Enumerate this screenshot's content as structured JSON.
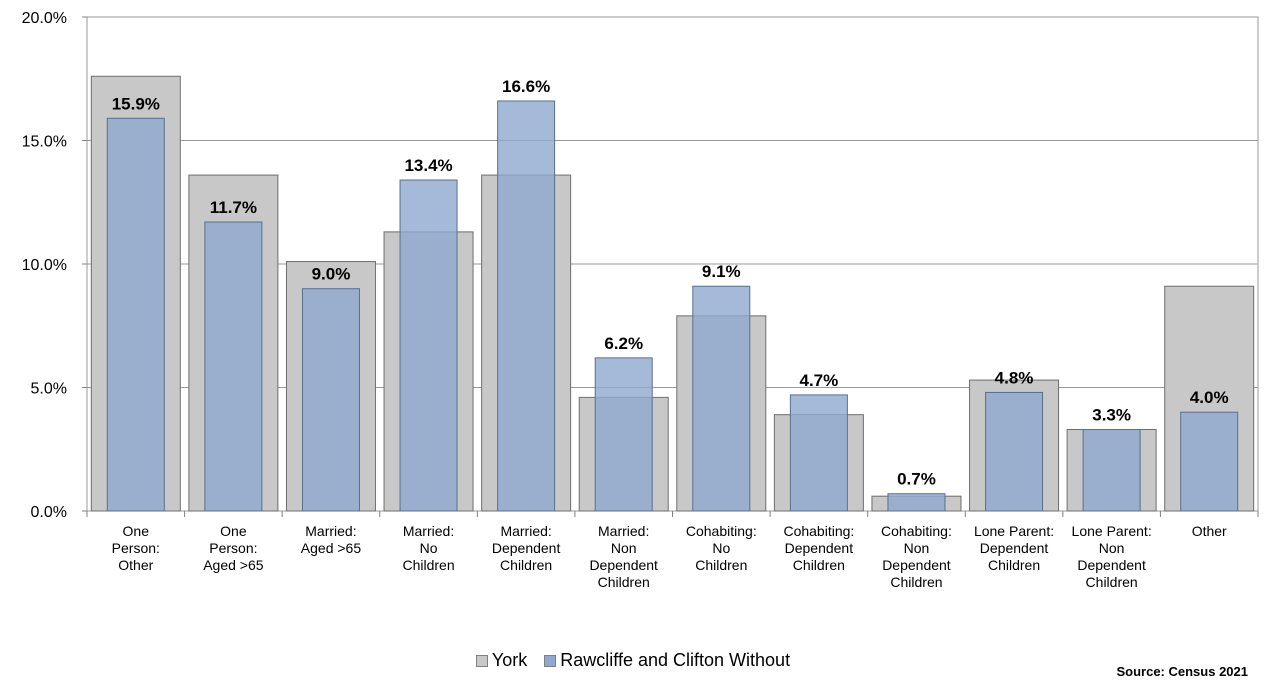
{
  "chart_data": {
    "type": "bar",
    "categories": [
      [
        "One",
        "Person:",
        "Other"
      ],
      [
        "One",
        "Person:",
        "Aged >65"
      ],
      [
        "Married:",
        "Aged >65"
      ],
      [
        "Married:",
        "No",
        "Children"
      ],
      [
        "Married:",
        "Dependent",
        "Children"
      ],
      [
        "Married:",
        "Non",
        "Dependent",
        "Children"
      ],
      [
        "Cohabiting:",
        "No",
        "Children"
      ],
      [
        "Cohabiting:",
        "Dependent",
        "Children"
      ],
      [
        "Cohabiting:",
        "Non",
        "Dependent",
        "Children"
      ],
      [
        "Lone Parent:",
        "Dependent",
        "Children"
      ],
      [
        "Lone Parent:",
        "Non",
        "Dependent",
        "Children"
      ],
      [
        "Other"
      ]
    ],
    "series": [
      {
        "name": "York",
        "values": [
          17.6,
          13.6,
          10.1,
          11.3,
          13.6,
          4.6,
          7.9,
          3.9,
          0.6,
          5.3,
          3.3,
          9.1
        ],
        "color": "#c8c8c8"
      },
      {
        "name": "Rawcliffe and Clifton Without",
        "values": [
          15.9,
          11.7,
          9.0,
          13.4,
          16.6,
          6.2,
          9.1,
          4.7,
          0.7,
          4.8,
          3.3,
          4.0
        ],
        "color": "#8ea9d0"
      }
    ],
    "data_labels": [
      "15.9%",
      "11.7%",
      "9.0%",
      "13.4%",
      "16.6%",
      "6.2%",
      "9.1%",
      "4.7%",
      "0.7%",
      "4.8%",
      "3.3%",
      "4.0%"
    ],
    "y_ticks": [
      "0.0%",
      "5.0%",
      "10.0%",
      "15.0%",
      "20.0%"
    ],
    "ylim": [
      0,
      20
    ],
    "grid": true,
    "legend_position": "bottom"
  },
  "legend": {
    "york": "York",
    "rawcliffe": "Rawcliffe and Clifton Without"
  },
  "source": "Source: Census 2021"
}
